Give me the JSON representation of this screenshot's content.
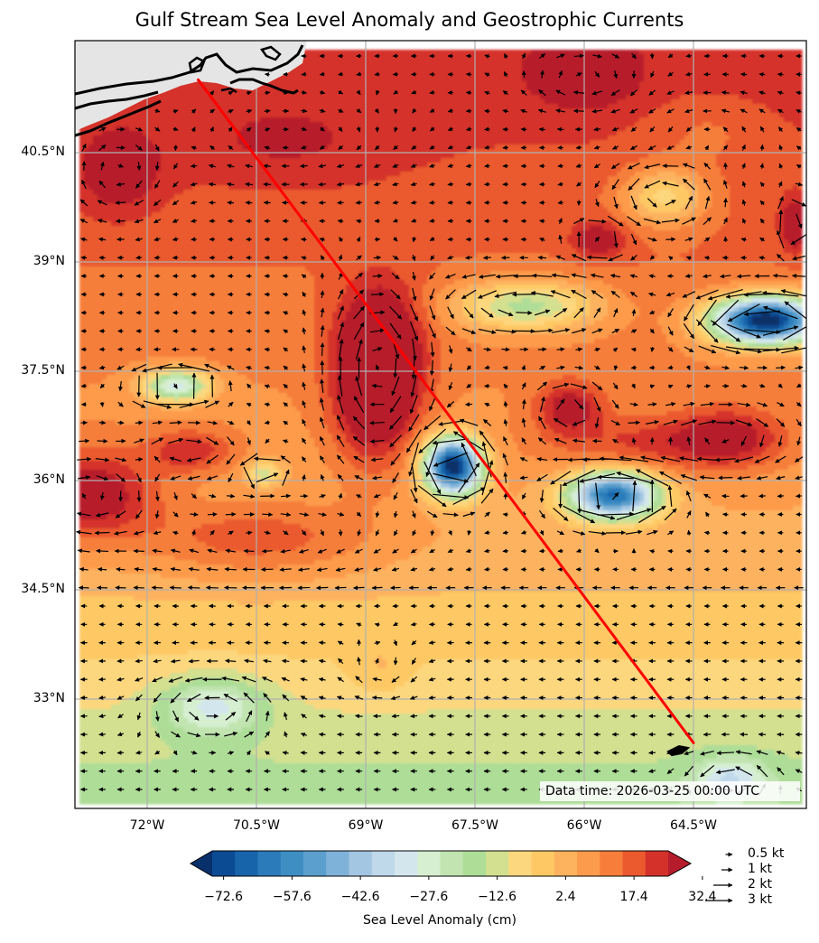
{
  "title": "Gulf Stream Sea Level Anomaly and Geostrophic Currents",
  "data_time": "Data time: 2026-03-25 00:00 UTC",
  "colorbar": {
    "label": "Sea Level Anomaly (cm)",
    "ticks": [
      "−72.6",
      "−57.6",
      "−42.6",
      "−27.6",
      "−12.6",
      "2.4",
      "17.4",
      "32.4"
    ],
    "colors": [
      "#08306b",
      "#0b4b93",
      "#1864aa",
      "#2b7bba",
      "#3e8ec4",
      "#5a9fcd",
      "#7fb2d8",
      "#a3c6e2",
      "#bfd8ea",
      "#d3e6ee",
      "#d6efd0",
      "#c1e4b0",
      "#aedd98",
      "#d2e090",
      "#fdd77e",
      "#fec965",
      "#fdb25e",
      "#fd9b4c",
      "#f67e3a",
      "#ea5a2e",
      "#d4312a",
      "#b71c2c"
    ],
    "min": -80.1,
    "max": 39.9,
    "step": 5.0
  },
  "quiver_key": [
    "0.5 kt",
    "1 kt",
    "2 kt",
    "3 kt"
  ],
  "quiver_key_values": [
    0.5,
    1,
    2,
    3
  ],
  "lat_labels": [
    "40.5°N",
    "39°N",
    "37.5°N",
    "36°N",
    "34.5°N",
    "33°N"
  ],
  "lon_labels": [
    "72°W",
    "70.5°W",
    "69°W",
    "67.5°W",
    "66°W",
    "64.5°W"
  ],
  "chart_data": {
    "type": "map",
    "extent": {
      "lon_min": -73.0,
      "lon_max": -63.0,
      "lat_min": 31.6,
      "lat_max": 42.0
    },
    "lat_ticks": [
      40.5,
      39,
      37.5,
      36,
      34.5,
      33
    ],
    "lon_ticks": [
      -72,
      -70.5,
      -69,
      -67.5,
      -66,
      -64.5
    ],
    "transect": {
      "start": {
        "lon": -71.3,
        "lat": 41.5
      },
      "end": {
        "lon": -64.5,
        "lat": 32.4
      },
      "color": "#ff0000"
    },
    "features": {
      "gulf_stream_jet": "meandering eastward jet near 37.5°N–38°N",
      "warm_core": {
        "lon": -68.8,
        "lat": 37.7,
        "sla_cm": 38
      },
      "cold_eddies": [
        {
          "lon": -67.8,
          "lat": 36.2,
          "sla_cm": -75
        },
        {
          "lon": -65.6,
          "lat": 35.8,
          "sla_cm": -55
        },
        {
          "lon": -63.6,
          "lat": 38.2,
          "sla_cm": -78
        },
        {
          "lon": -71.5,
          "lat": 37.3,
          "sla_cm": -30
        }
      ]
    }
  }
}
